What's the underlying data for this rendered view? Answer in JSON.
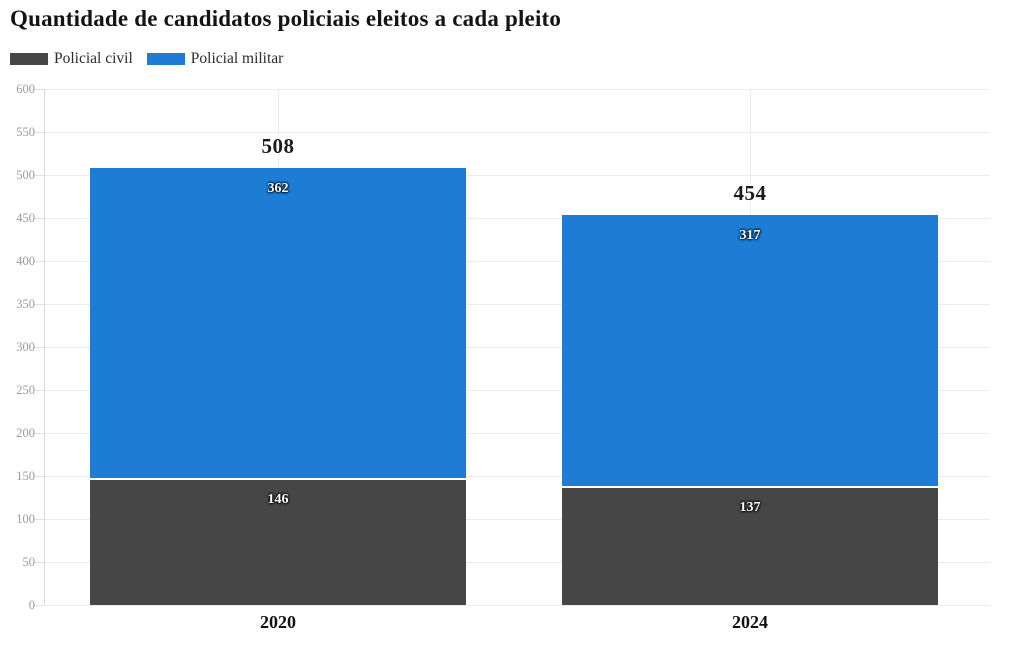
{
  "title": "Quantidade de candidatos policiais eleitos a cada pleito",
  "legend": [
    {
      "label": "Policial civil",
      "color": "#464646"
    },
    {
      "label": "Policial militar",
      "color": "#1d7dd4"
    }
  ],
  "chart_data": {
    "type": "bar",
    "stacked": true,
    "title": "Quantidade de candidatos policiais eleitos a cada pleito",
    "categories": [
      "2020",
      "2024"
    ],
    "series": [
      {
        "name": "Policial civil",
        "color": "#464646",
        "values": [
          146,
          137
        ]
      },
      {
        "name": "Policial militar",
        "color": "#1d7dd4",
        "values": [
          362,
          317
        ]
      }
    ],
    "totals": [
      508,
      454
    ],
    "xlabel": "",
    "ylabel": "",
    "ylim": [
      0,
      600
    ],
    "ytick_step": 50,
    "grid": true,
    "legend_position": "top-left",
    "colors": {
      "grid": "#ececec",
      "axis": "#d8d8d8",
      "tick": "#e0e0e0",
      "tick_label": "#9b9b9b",
      "total_label": "#1c1c1c",
      "background": "#ffffff"
    }
  }
}
